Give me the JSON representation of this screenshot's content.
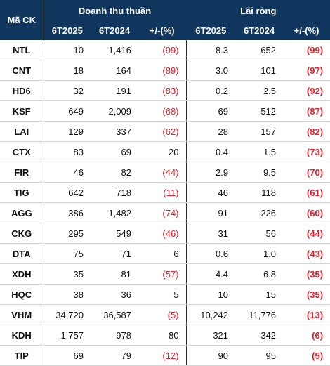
{
  "headers": {
    "code": "Mã CK",
    "revenue_group": "Doanh thu thuần",
    "profit_group": "Lãi ròng",
    "col_6t2025": "6T2025",
    "col_6t2024": "6T2024",
    "col_change": "+/-(%)"
  },
  "rows": [
    {
      "code": "NTL",
      "rev_2025": "10",
      "rev_2024": "1,416",
      "rev_chg": "(99)",
      "rev_neg": true,
      "prof_2025": "8.3",
      "prof_2024": "652",
      "prof_chg": "(99)",
      "prof_neg": true
    },
    {
      "code": "CNT",
      "rev_2025": "18",
      "rev_2024": "164",
      "rev_chg": "(89)",
      "rev_neg": true,
      "prof_2025": "3.0",
      "prof_2024": "101",
      "prof_chg": "(97)",
      "prof_neg": true
    },
    {
      "code": "HD6",
      "rev_2025": "32",
      "rev_2024": "191",
      "rev_chg": "(83)",
      "rev_neg": true,
      "prof_2025": "0.2",
      "prof_2024": "2.5",
      "prof_chg": "(92)",
      "prof_neg": true
    },
    {
      "code": "KSF",
      "rev_2025": "649",
      "rev_2024": "2,009",
      "rev_chg": "(68)",
      "rev_neg": true,
      "prof_2025": "69",
      "prof_2024": "512",
      "prof_chg": "(87)",
      "prof_neg": true
    },
    {
      "code": "LAI",
      "rev_2025": "129",
      "rev_2024": "337",
      "rev_chg": "(62)",
      "rev_neg": true,
      "prof_2025": "28",
      "prof_2024": "157",
      "prof_chg": "(82)",
      "prof_neg": true
    },
    {
      "code": "CTX",
      "rev_2025": "83",
      "rev_2024": "69",
      "rev_chg": "20",
      "rev_neg": false,
      "prof_2025": "0.4",
      "prof_2024": "1.5",
      "prof_chg": "(73)",
      "prof_neg": true
    },
    {
      "code": "FIR",
      "rev_2025": "46",
      "rev_2024": "82",
      "rev_chg": "(44)",
      "rev_neg": true,
      "prof_2025": "2.9",
      "prof_2024": "9.5",
      "prof_chg": "(70)",
      "prof_neg": true
    },
    {
      "code": "TIG",
      "rev_2025": "642",
      "rev_2024": "718",
      "rev_chg": "(11)",
      "rev_neg": true,
      "prof_2025": "46",
      "prof_2024": "118",
      "prof_chg": "(61)",
      "prof_neg": true
    },
    {
      "code": "AGG",
      "rev_2025": "386",
      "rev_2024": "1,482",
      "rev_chg": "(74)",
      "rev_neg": true,
      "prof_2025": "91",
      "prof_2024": "226",
      "prof_chg": "(60)",
      "prof_neg": true
    },
    {
      "code": "CKG",
      "rev_2025": "295",
      "rev_2024": "549",
      "rev_chg": "(46)",
      "rev_neg": true,
      "prof_2025": "31",
      "prof_2024": "56",
      "prof_chg": "(44)",
      "prof_neg": true
    },
    {
      "code": "DTA",
      "rev_2025": "75",
      "rev_2024": "71",
      "rev_chg": "6",
      "rev_neg": false,
      "prof_2025": "0.6",
      "prof_2024": "1.0",
      "prof_chg": "(43)",
      "prof_neg": true
    },
    {
      "code": "XDH",
      "rev_2025": "35",
      "rev_2024": "81",
      "rev_chg": "(57)",
      "rev_neg": true,
      "prof_2025": "4.4",
      "prof_2024": "6.8",
      "prof_chg": "(35)",
      "prof_neg": true
    },
    {
      "code": "HQC",
      "rev_2025": "38",
      "rev_2024": "36",
      "rev_chg": "5",
      "rev_neg": false,
      "prof_2025": "10",
      "prof_2024": "15",
      "prof_chg": "(35)",
      "prof_neg": true
    },
    {
      "code": "VHM",
      "rev_2025": "34,720",
      "rev_2024": "36,587",
      "rev_chg": "(5)",
      "rev_neg": true,
      "prof_2025": "10,242",
      "prof_2024": "11,776",
      "prof_chg": "(13)",
      "prof_neg": true
    },
    {
      "code": "KDH",
      "rev_2025": "1,757",
      "rev_2024": "978",
      "rev_chg": "80",
      "rev_neg": false,
      "prof_2025": "321",
      "prof_2024": "342",
      "prof_chg": "(6)",
      "prof_neg": true
    },
    {
      "code": "TIP",
      "rev_2025": "69",
      "rev_2024": "79",
      "rev_chg": "(12)",
      "rev_neg": true,
      "prof_2025": "90",
      "prof_2024": "95",
      "prof_chg": "(5)",
      "prof_neg": true
    }
  ],
  "colors": {
    "header_bg": "#12375f",
    "header_text": "#ffffff",
    "negative": "#e0202a"
  }
}
